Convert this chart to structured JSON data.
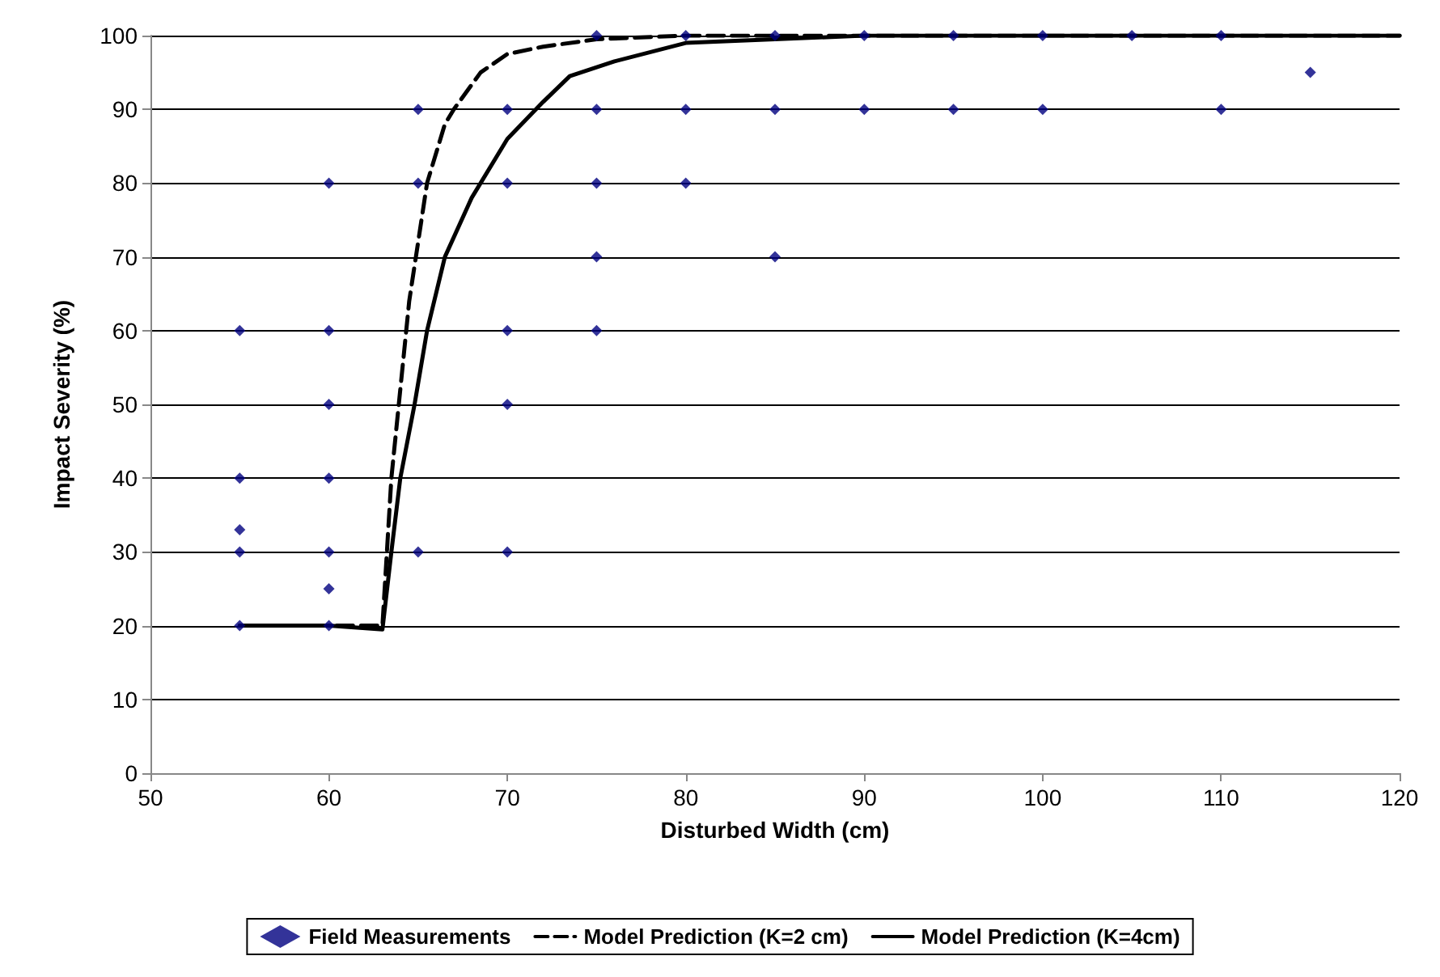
{
  "chart_data": {
    "type": "scatter",
    "xlabel": "Disturbed Width (cm)",
    "ylabel": "Impact Severity (%)",
    "xlim": [
      50,
      120
    ],
    "xticks": [
      50,
      60,
      70,
      80,
      90,
      100,
      110,
      120
    ],
    "ylim": [
      0,
      100
    ],
    "yticks": [
      0,
      10,
      20,
      30,
      40,
      50,
      60,
      70,
      80,
      90,
      100
    ],
    "grid": "y",
    "legend": "bottom",
    "series": [
      {
        "name": "Field Measurements",
        "marker": "diamond",
        "color": "#000080",
        "x": [
          55,
          55,
          55,
          55,
          55,
          60,
          60,
          60,
          60,
          60,
          60,
          60,
          65,
          65,
          65,
          70,
          70,
          70,
          70,
          70,
          75,
          75,
          75,
          75,
          75,
          80,
          80,
          80,
          85,
          85,
          85,
          90,
          90,
          95,
          95,
          100,
          100,
          105,
          110,
          110,
          115
        ],
        "values": [
          60,
          40,
          33,
          30,
          20,
          80,
          60,
          50,
          40,
          30,
          25,
          20,
          90,
          80,
          30,
          90,
          80,
          60,
          50,
          30,
          100,
          90,
          80,
          70,
          60,
          100,
          90,
          80,
          100,
          90,
          70,
          100,
          90,
          100,
          90,
          100,
          90,
          100,
          100,
          90,
          95
        ]
      },
      {
        "name": "Model Prediction (K=2 cm)",
        "type": "line",
        "marker": "none",
        "line_style": "dashed",
        "color": "#000000",
        "x": [
          55,
          60,
          63,
          63.5,
          64,
          64.5,
          65,
          65.5,
          66.5,
          67,
          68.5,
          70,
          72,
          75,
          80,
          120
        ],
        "values": [
          20,
          20,
          20,
          40,
          52,
          64,
          72,
          80,
          88,
          90,
          95,
          97.5,
          98.5,
          99.5,
          100,
          100
        ]
      },
      {
        "name": "Model Prediction (K=4cm)",
        "type": "line",
        "marker": "none",
        "line_style": "solid",
        "color": "#000000",
        "x": [
          55,
          60,
          63,
          63.5,
          64,
          64.8,
          65.5,
          66.5,
          68,
          70,
          72,
          73.5,
          76,
          80,
          85,
          90,
          120
        ],
        "values": [
          20,
          20,
          19.5,
          30,
          40,
          50,
          60,
          70,
          78,
          86,
          91,
          94.5,
          96.5,
          99,
          99.5,
          100,
          100
        ]
      }
    ]
  }
}
